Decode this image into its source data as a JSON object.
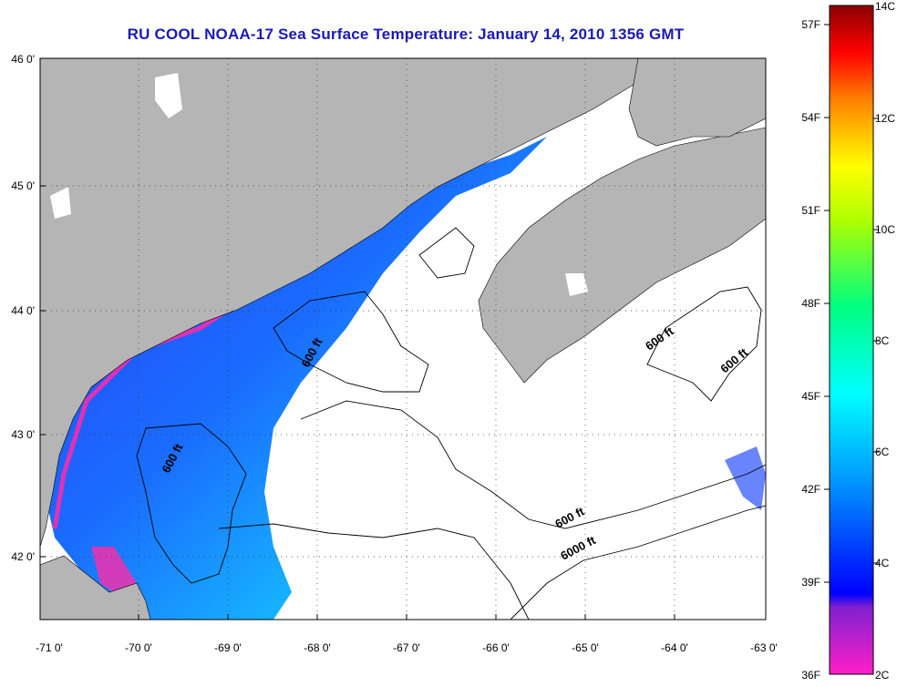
{
  "title": "RU COOL  NOAA-17  Sea Surface Temperature:  January 14, 2010 1356 GMT",
  "lat_labels": [
    "46 0'",
    "45 0'",
    "44 0'",
    "43 0'",
    "42 0'"
  ],
  "lon_labels": [
    "-71 0'",
    "-70 0'",
    "-69 0'",
    "-68 0'",
    "-67 0'",
    "-66 0'",
    "-65 0'",
    "-64 0'",
    "-63 0'"
  ],
  "contour_labels": [
    "600 ft",
    "600 ft",
    "600 ft",
    "600 ft",
    "600 ft",
    "6000 ft"
  ],
  "colorbar": {
    "fahrenheit": [
      "57F",
      "54F",
      "51F",
      "48F",
      "45F",
      "42F",
      "39F",
      "36F"
    ],
    "celsius": [
      "14C",
      "12C",
      "10C",
      "8C",
      "6C",
      "4C",
      "2C"
    ]
  },
  "colors": {
    "land": "#b5b5b5",
    "cloud": "#ffffff",
    "title": "#1a1ab4",
    "cold": "#1e3cff",
    "warm": "#00d2ff",
    "coastal": "#ff2aa8"
  }
}
